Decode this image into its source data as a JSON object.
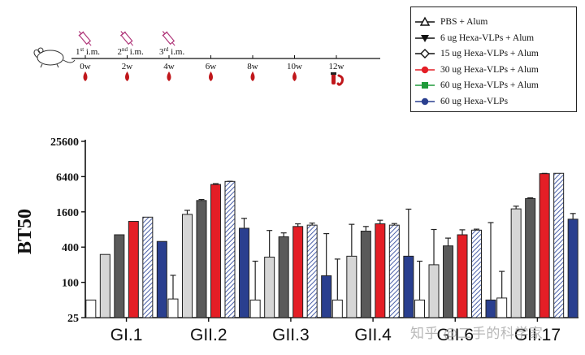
{
  "timeline": {
    "immunizations": [
      {
        "label": "1st i.m.",
        "num": "1",
        "sup": "st",
        "rest": " i.m.",
        "week": "0w"
      },
      {
        "label": "2nd i.m.",
        "num": "2",
        "sup": "nd",
        "rest": " i.m.",
        "week": "2w"
      },
      {
        "label": "3rd i.m.",
        "num": "3",
        "sup": "rd",
        "rest": " i.m.",
        "week": "4w"
      }
    ],
    "weeks": [
      "0w",
      "2w",
      "4w",
      "6w",
      "8w",
      "10w",
      "12w"
    ],
    "icons": {
      "animal": "mouse-icon",
      "injection": "syringe-icon",
      "sample": "blood-drop-icon",
      "terminal": "blood-tube-icon"
    },
    "colors": {
      "syringe": "#b0377a",
      "blood": "#c0171b"
    }
  },
  "legend": {
    "items": [
      {
        "label": "PBS + Alum",
        "marker": "triangle-up",
        "color": "#111111"
      },
      {
        "label": "6 ug Hexa-VLPs + Alum",
        "marker": "triangle-down",
        "color": "#111111"
      },
      {
        "label": "15 ug Hexa-VLPs + Alum",
        "marker": "diamond-open",
        "color": "#111111"
      },
      {
        "label": "30 ug Hexa-VLPs + Alum",
        "marker": "circle",
        "color": "#e41e26"
      },
      {
        "label": "60 ug Hexa-VLPs + Alum",
        "marker": "square",
        "color": "#1f9a3a"
      },
      {
        "label": "60 ug Hexa-VLPs",
        "marker": "circle",
        "color": "#2a3f8f"
      }
    ]
  },
  "chart_data": {
    "type": "bar",
    "ylabel": "BT50",
    "yscale": "log2",
    "ylim": [
      25,
      25600
    ],
    "yticks": [
      25,
      100,
      400,
      1600,
      6400,
      25600
    ],
    "ytick_labels": [
      "25",
      "100",
      "400",
      "1600",
      "6400",
      "25600"
    ],
    "categories": [
      "GI.1",
      "GII.2",
      "GII.3",
      "GII.4",
      "GII.6",
      "GII.17"
    ],
    "series": [
      {
        "name": "PBS + Alum",
        "fill": "#ffffff",
        "pattern": "none",
        "values": [
          50,
          52,
          50,
          50,
          50,
          54
        ]
      },
      {
        "name": "6 ug Hexa-VLPs + Alum",
        "fill": "#d6d6d6",
        "pattern": "none",
        "values": [
          300,
          1450,
          270,
          280,
          200,
          1800
        ]
      },
      {
        "name": "15 ug Hexa-VLPs + Alum",
        "fill": "#5a5a5a",
        "pattern": "none",
        "values": [
          650,
          2500,
          600,
          750,
          420,
          2700
        ]
      },
      {
        "name": "30 ug Hexa-VLPs + Alum",
        "fill": "#e41e26",
        "pattern": "none",
        "values": [
          1100,
          4700,
          900,
          1000,
          650,
          7200
        ]
      },
      {
        "name": "60 ug Hexa-VLPs + Alum",
        "fill": "#ffffff",
        "pattern": "hatch",
        "values": [
          1300,
          5300,
          950,
          950,
          780,
          7300
        ]
      },
      {
        "name": "60 ug Hexa-VLPs",
        "fill": "#2a3f8f",
        "pattern": "none",
        "values": [
          500,
          840,
          130,
          280,
          50,
          1200
        ]
      }
    ],
    "error": [
      [
        0,
        80,
        180,
        200,
        180,
        100
      ],
      [
        0,
        250,
        500,
        700,
        600,
        200
      ],
      [
        0,
        100,
        100,
        150,
        150,
        80
      ],
      [
        0,
        150,
        100,
        150,
        140,
        80
      ],
      [
        0,
        20,
        80,
        60,
        30,
        0
      ],
      [
        0,
        400,
        550,
        1500,
        1000,
        300
      ]
    ],
    "grid": false,
    "legend": "top-right"
  },
  "watermark": "知乎 @二手的科学家"
}
